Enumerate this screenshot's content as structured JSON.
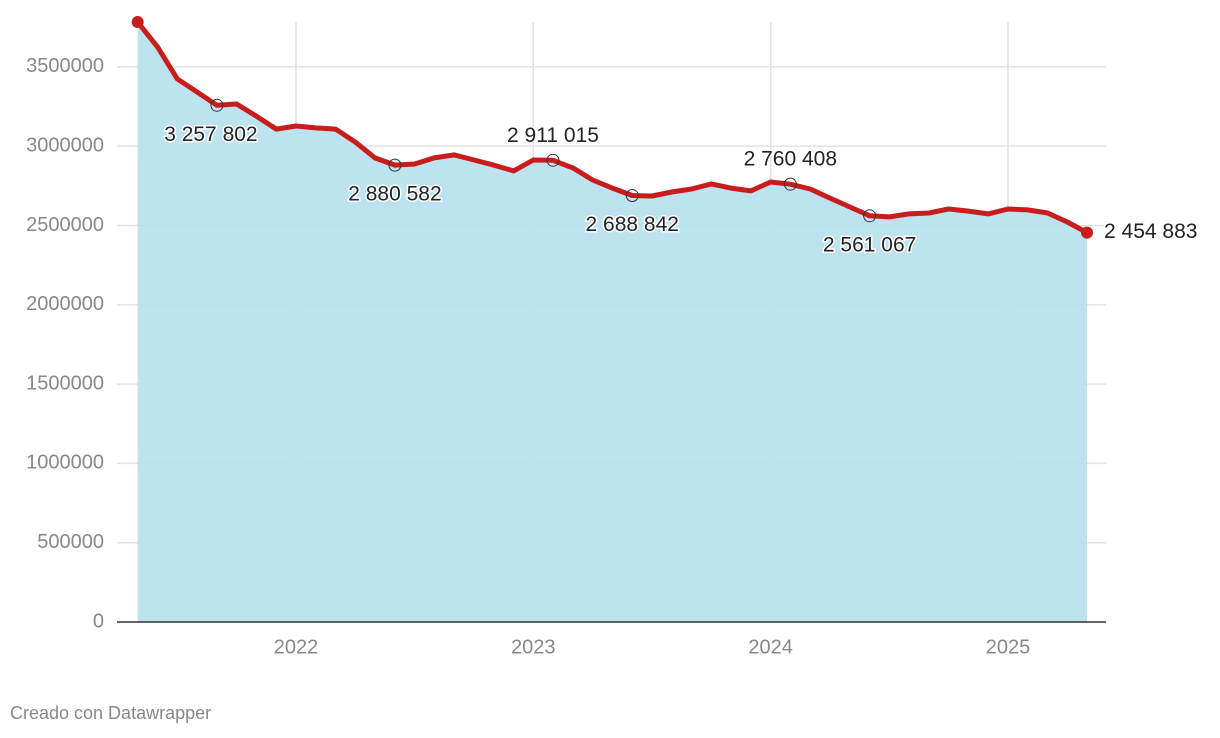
{
  "chart_data": {
    "type": "area-line",
    "x": [
      2021.333,
      2021.417,
      2021.5,
      2021.583,
      2021.667,
      2021.75,
      2021.833,
      2021.917,
      2022.0,
      2022.083,
      2022.167,
      2022.25,
      2022.333,
      2022.417,
      2022.5,
      2022.583,
      2022.667,
      2022.75,
      2022.833,
      2022.917,
      2023.0,
      2023.083,
      2023.167,
      2023.25,
      2023.333,
      2023.417,
      2023.5,
      2023.583,
      2023.667,
      2023.75,
      2023.833,
      2023.917,
      2024.0,
      2024.083,
      2024.167,
      2024.25,
      2024.333,
      2024.417,
      2024.5,
      2024.583,
      2024.667,
      2024.75,
      2024.833,
      2024.917,
      2025.0,
      2025.083,
      2025.167,
      2025.25,
      2025.333
    ],
    "values": [
      3783000,
      3625000,
      3424000,
      3342000,
      3257802,
      3266000,
      3190000,
      3108000,
      3127000,
      3115000,
      3108000,
      3026000,
      2926000,
      2880582,
      2888000,
      2926000,
      2945000,
      2913000,
      2881000,
      2844000,
      2913000,
      2911015,
      2863000,
      2787000,
      2736000,
      2688842,
      2686000,
      2711000,
      2730000,
      2762000,
      2736000,
      2718000,
      2774000,
      2760408,
      2730000,
      2673000,
      2617000,
      2561067,
      2554000,
      2573000,
      2579000,
      2604000,
      2591000,
      2573000,
      2604000,
      2598000,
      2579000,
      2522000,
      2454883
    ],
    "value_labels": [
      null,
      null,
      null,
      null,
      "3 257 802",
      null,
      null,
      null,
      null,
      null,
      null,
      null,
      null,
      "2 880 582",
      null,
      null,
      null,
      null,
      null,
      null,
      null,
      "2 911 015",
      null,
      null,
      null,
      "2 688 842",
      null,
      null,
      null,
      null,
      null,
      null,
      null,
      "2 760 408",
      null,
      null,
      null,
      "2 561 067",
      null,
      null,
      null,
      null,
      null,
      null,
      null,
      null,
      null,
      null,
      "2 454 883"
    ],
    "color": "#c91d1d",
    "area_color": "#b7e1f0",
    "xlim": [
      2021.246,
      2025.413
    ],
    "xticks": [
      2022,
      2023,
      2024,
      2025
    ],
    "ylim": [
      0,
      3783000
    ],
    "yticks": [
      0,
      500000,
      1000000,
      1500000,
      2000000,
      2500000,
      3000000,
      3500000
    ],
    "grid": true,
    "footer": "Creado con Datawrapper"
  }
}
